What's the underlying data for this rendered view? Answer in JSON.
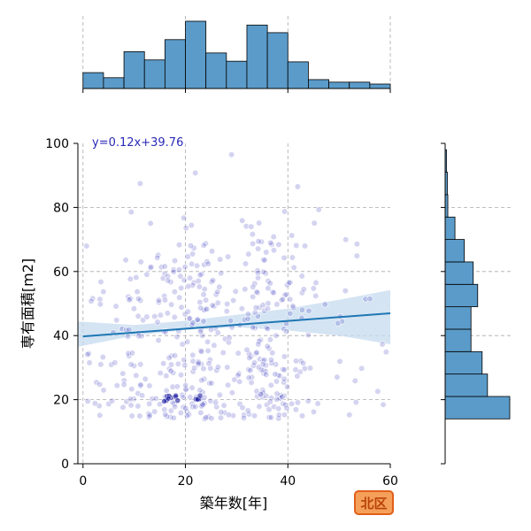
{
  "chart_data": {
    "type": "scatter",
    "subtype": "jointplot-scatter-with-marginal-histograms-and-regression",
    "xlabel": "築年数[年]",
    "ylabel": "専有面積[m2]",
    "xlim": [
      -1,
      60
    ],
    "ylim": [
      0,
      100
    ],
    "xticks": [
      0,
      20,
      40,
      60
    ],
    "yticks": [
      0,
      20,
      40,
      60,
      80,
      100
    ],
    "grid": true,
    "regression": {
      "equation_label": "y=0.12x+39.76",
      "slope": 0.12,
      "intercept": 39.76,
      "ci_lower": [
        [
          -1,
          36.5
        ],
        [
          10,
          40.0
        ],
        [
          20,
          41.8
        ],
        [
          30,
          42.6
        ],
        [
          40,
          41.6
        ],
        [
          50,
          40.0
        ],
        [
          60,
          37.3
        ]
      ],
      "ci_upper": [
        [
          -1,
          44.4
        ],
        [
          10,
          43.3
        ],
        [
          20,
          44.6
        ],
        [
          30,
          46.5
        ],
        [
          40,
          48.4
        ],
        [
          50,
          51.2
        ],
        [
          60,
          54.2
        ]
      ],
      "color": "#1f77b4",
      "ci_color": "#c6dbef"
    },
    "top_histogram": {
      "bin_edges": [
        0,
        4,
        8,
        12,
        16,
        20,
        24,
        28,
        32,
        36,
        40,
        44,
        48,
        52,
        56,
        60
      ],
      "counts": [
        25,
        17,
        58,
        45,
        77,
        106,
        56,
        43,
        100,
        88,
        42,
        14,
        10,
        10,
        7
      ]
    },
    "right_histogram": {
      "bin_edges": [
        14,
        21,
        28,
        35,
        42,
        49,
        56,
        63,
        70,
        77,
        84,
        91,
        98
      ],
      "counts": [
        145,
        95,
        83,
        58,
        58,
        73,
        63,
        43,
        22,
        6,
        5,
        3
      ]
    },
    "scatter_color": "#3d3dbd",
    "hist_color": "#5b9bc9",
    "badge_label": "北区",
    "badge_color": "#f5a05a",
    "badge_border": "#e0601a"
  }
}
